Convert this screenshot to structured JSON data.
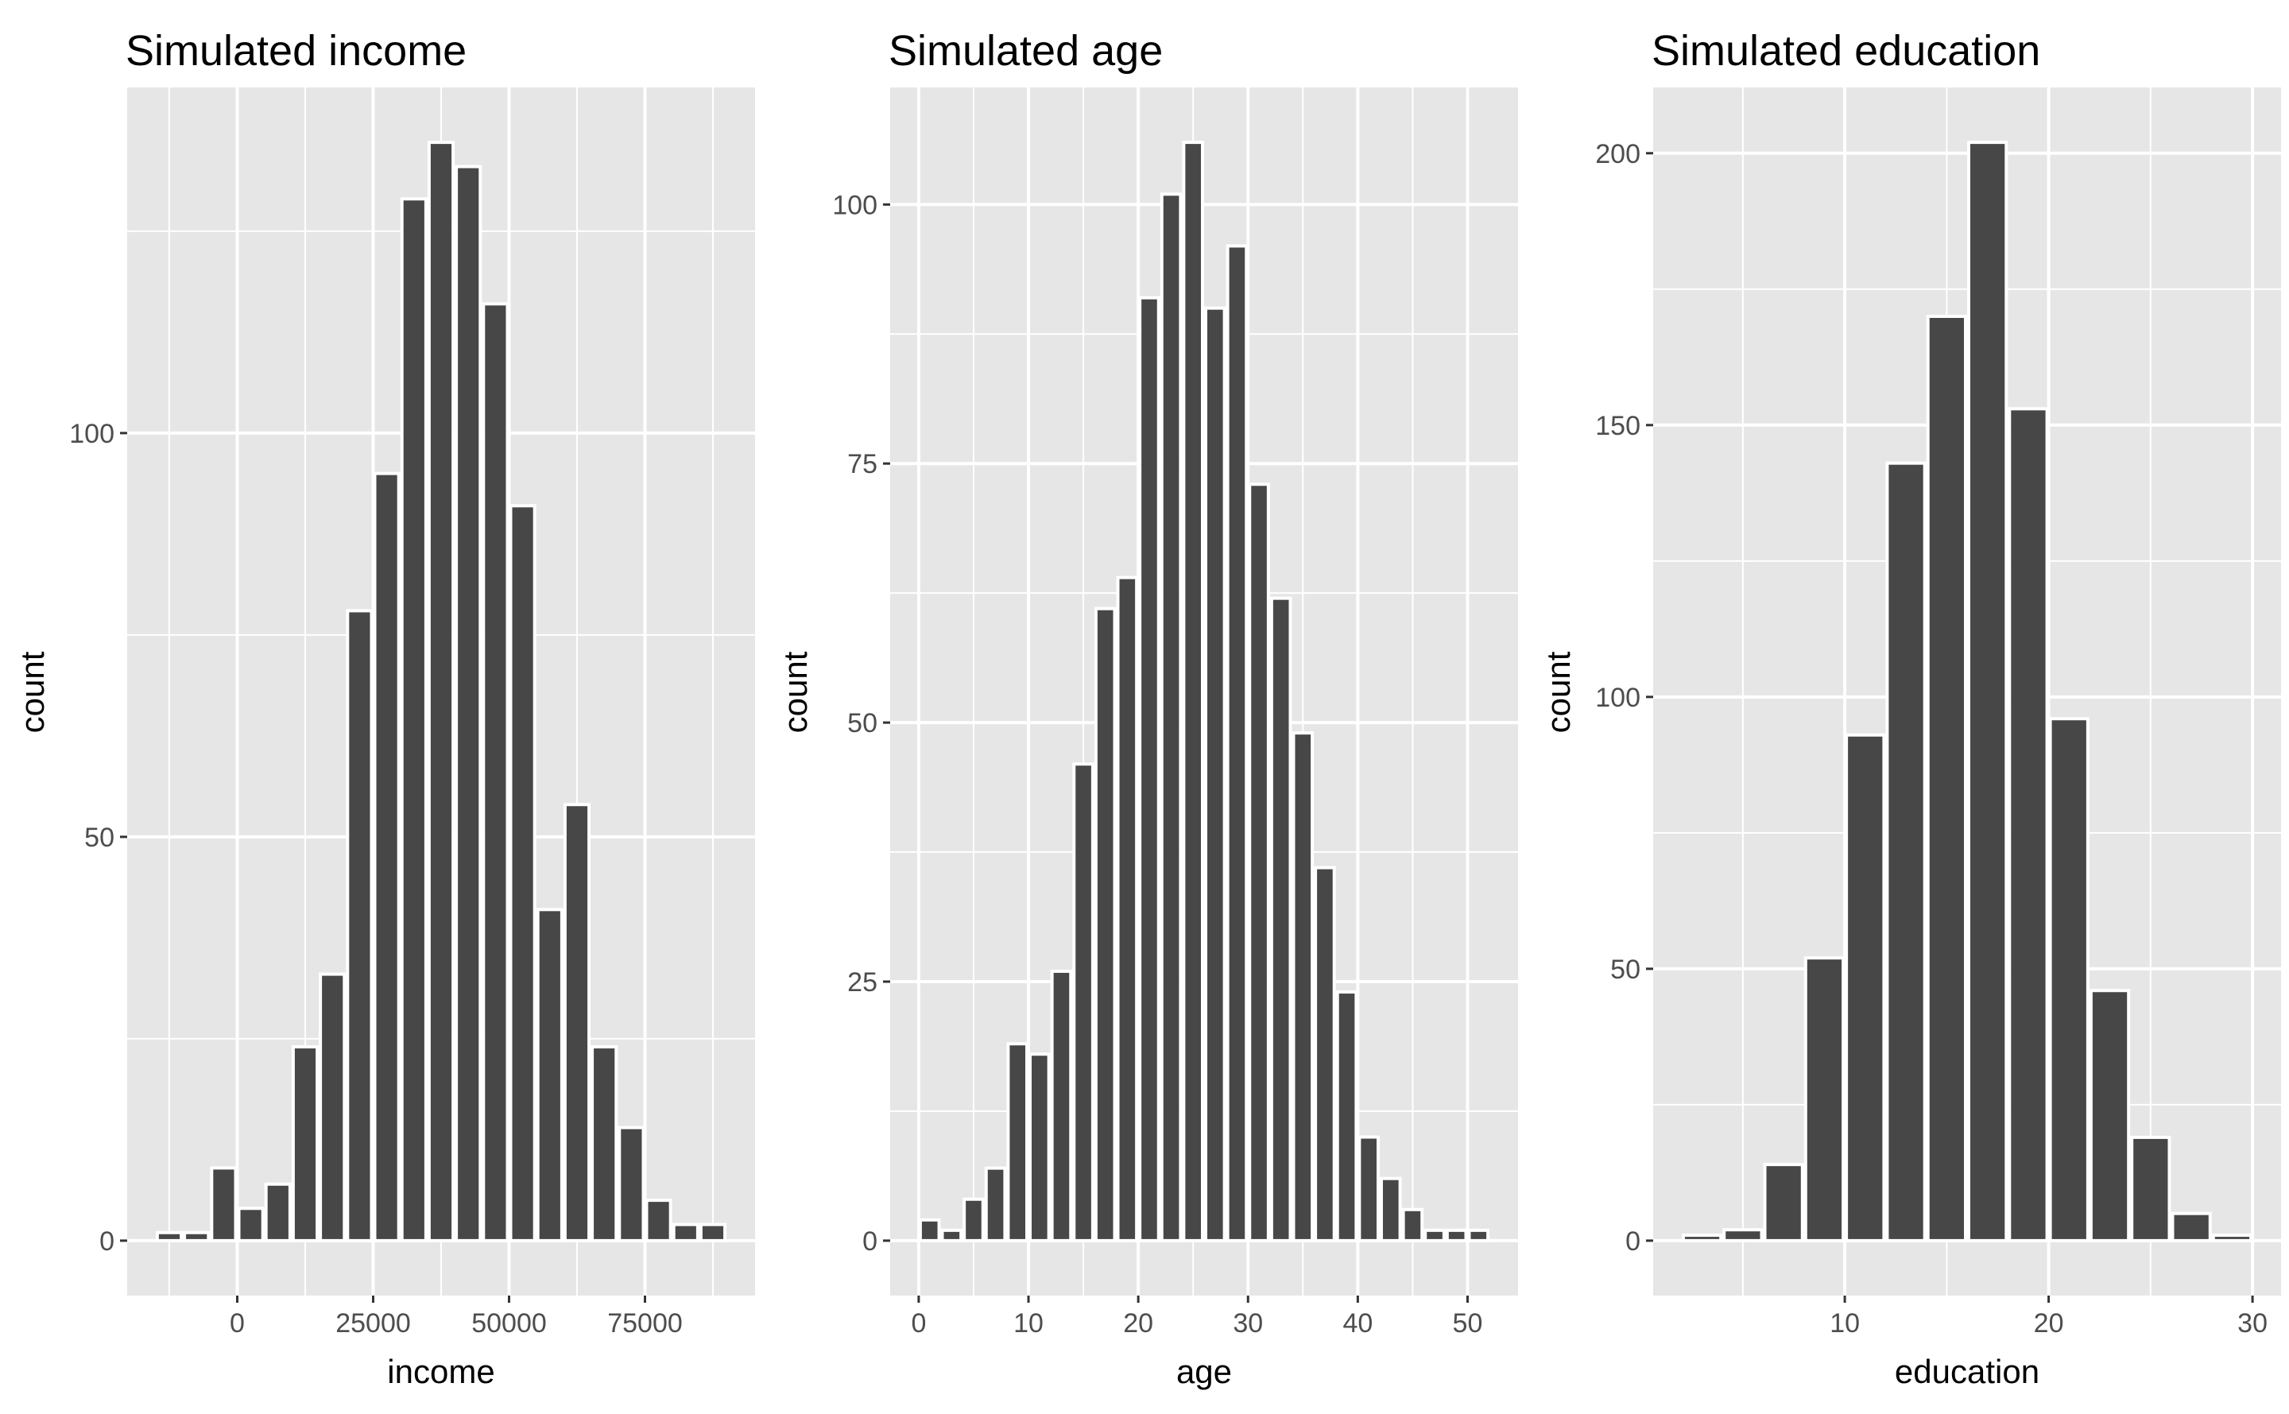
{
  "figure": {
    "background": "#FFFFFF",
    "description": "Three histograms of simulated variables"
  },
  "style": {
    "panel_bg": "#E6E6E6",
    "bar_fill": "#474747",
    "bar_stroke": "#FFFFFF",
    "grid_major_color": "#FFFFFF",
    "grid_minor_color": "#FFFFFF",
    "tick_label_color": "#4D4D4D",
    "tick_mark_color": "#333333",
    "title_color": "#000000"
  },
  "chart_data": [
    {
      "type": "bar",
      "subtype": "histogram",
      "title": "Simulated income",
      "xlabel": "income",
      "ylabel": "count",
      "bin_start": -15000,
      "bin_width": 5000,
      "counts": [
        1,
        1,
        9,
        4,
        7,
        24,
        33,
        78,
        95,
        129,
        136,
        133,
        116,
        91,
        41,
        54,
        24,
        14,
        5,
        2,
        2
      ],
      "x_ticks": [
        0,
        25000,
        50000,
        75000
      ],
      "y_ticks": [
        0,
        50,
        100
      ],
      "xlim": [
        -20250,
        95250
      ],
      "ylim": [
        -6.8,
        142.8
      ],
      "grid": "major-and-minor white on grey panel",
      "legend": "none"
    },
    {
      "type": "bar",
      "subtype": "histogram",
      "title": "Simulated age",
      "xlabel": "age",
      "ylabel": "count",
      "bin_start": 0,
      "bin_width": 2,
      "counts": [
        2,
        1,
        4,
        7,
        19,
        18,
        26,
        46,
        61,
        64,
        91,
        101,
        106,
        90,
        96,
        73,
        62,
        49,
        36,
        24,
        10,
        6,
        3,
        1,
        1,
        1
      ],
      "x_ticks": [
        0,
        10,
        20,
        30,
        40,
        50
      ],
      "y_ticks": [
        0,
        25,
        50,
        75,
        100
      ],
      "xlim": [
        -2.6,
        54.6
      ],
      "ylim": [
        -5.3,
        111.3
      ],
      "grid": "major-and-minor white on grey panel",
      "legend": "none"
    },
    {
      "type": "bar",
      "subtype": "histogram",
      "title": "Simulated education",
      "xlabel": "education",
      "ylabel": "count",
      "bin_start": 2,
      "bin_width": 2,
      "counts": [
        1,
        2,
        14,
        52,
        93,
        143,
        170,
        202,
        153,
        96,
        46,
        19,
        5,
        1
      ],
      "x_ticks": [
        10,
        20,
        30
      ],
      "y_ticks": [
        0,
        50,
        100,
        150,
        200
      ],
      "xlim": [
        0.6,
        31.4
      ],
      "ylim": [
        -10.1,
        212.1
      ],
      "grid": "major-and-minor white on grey panel",
      "legend": "none"
    }
  ]
}
